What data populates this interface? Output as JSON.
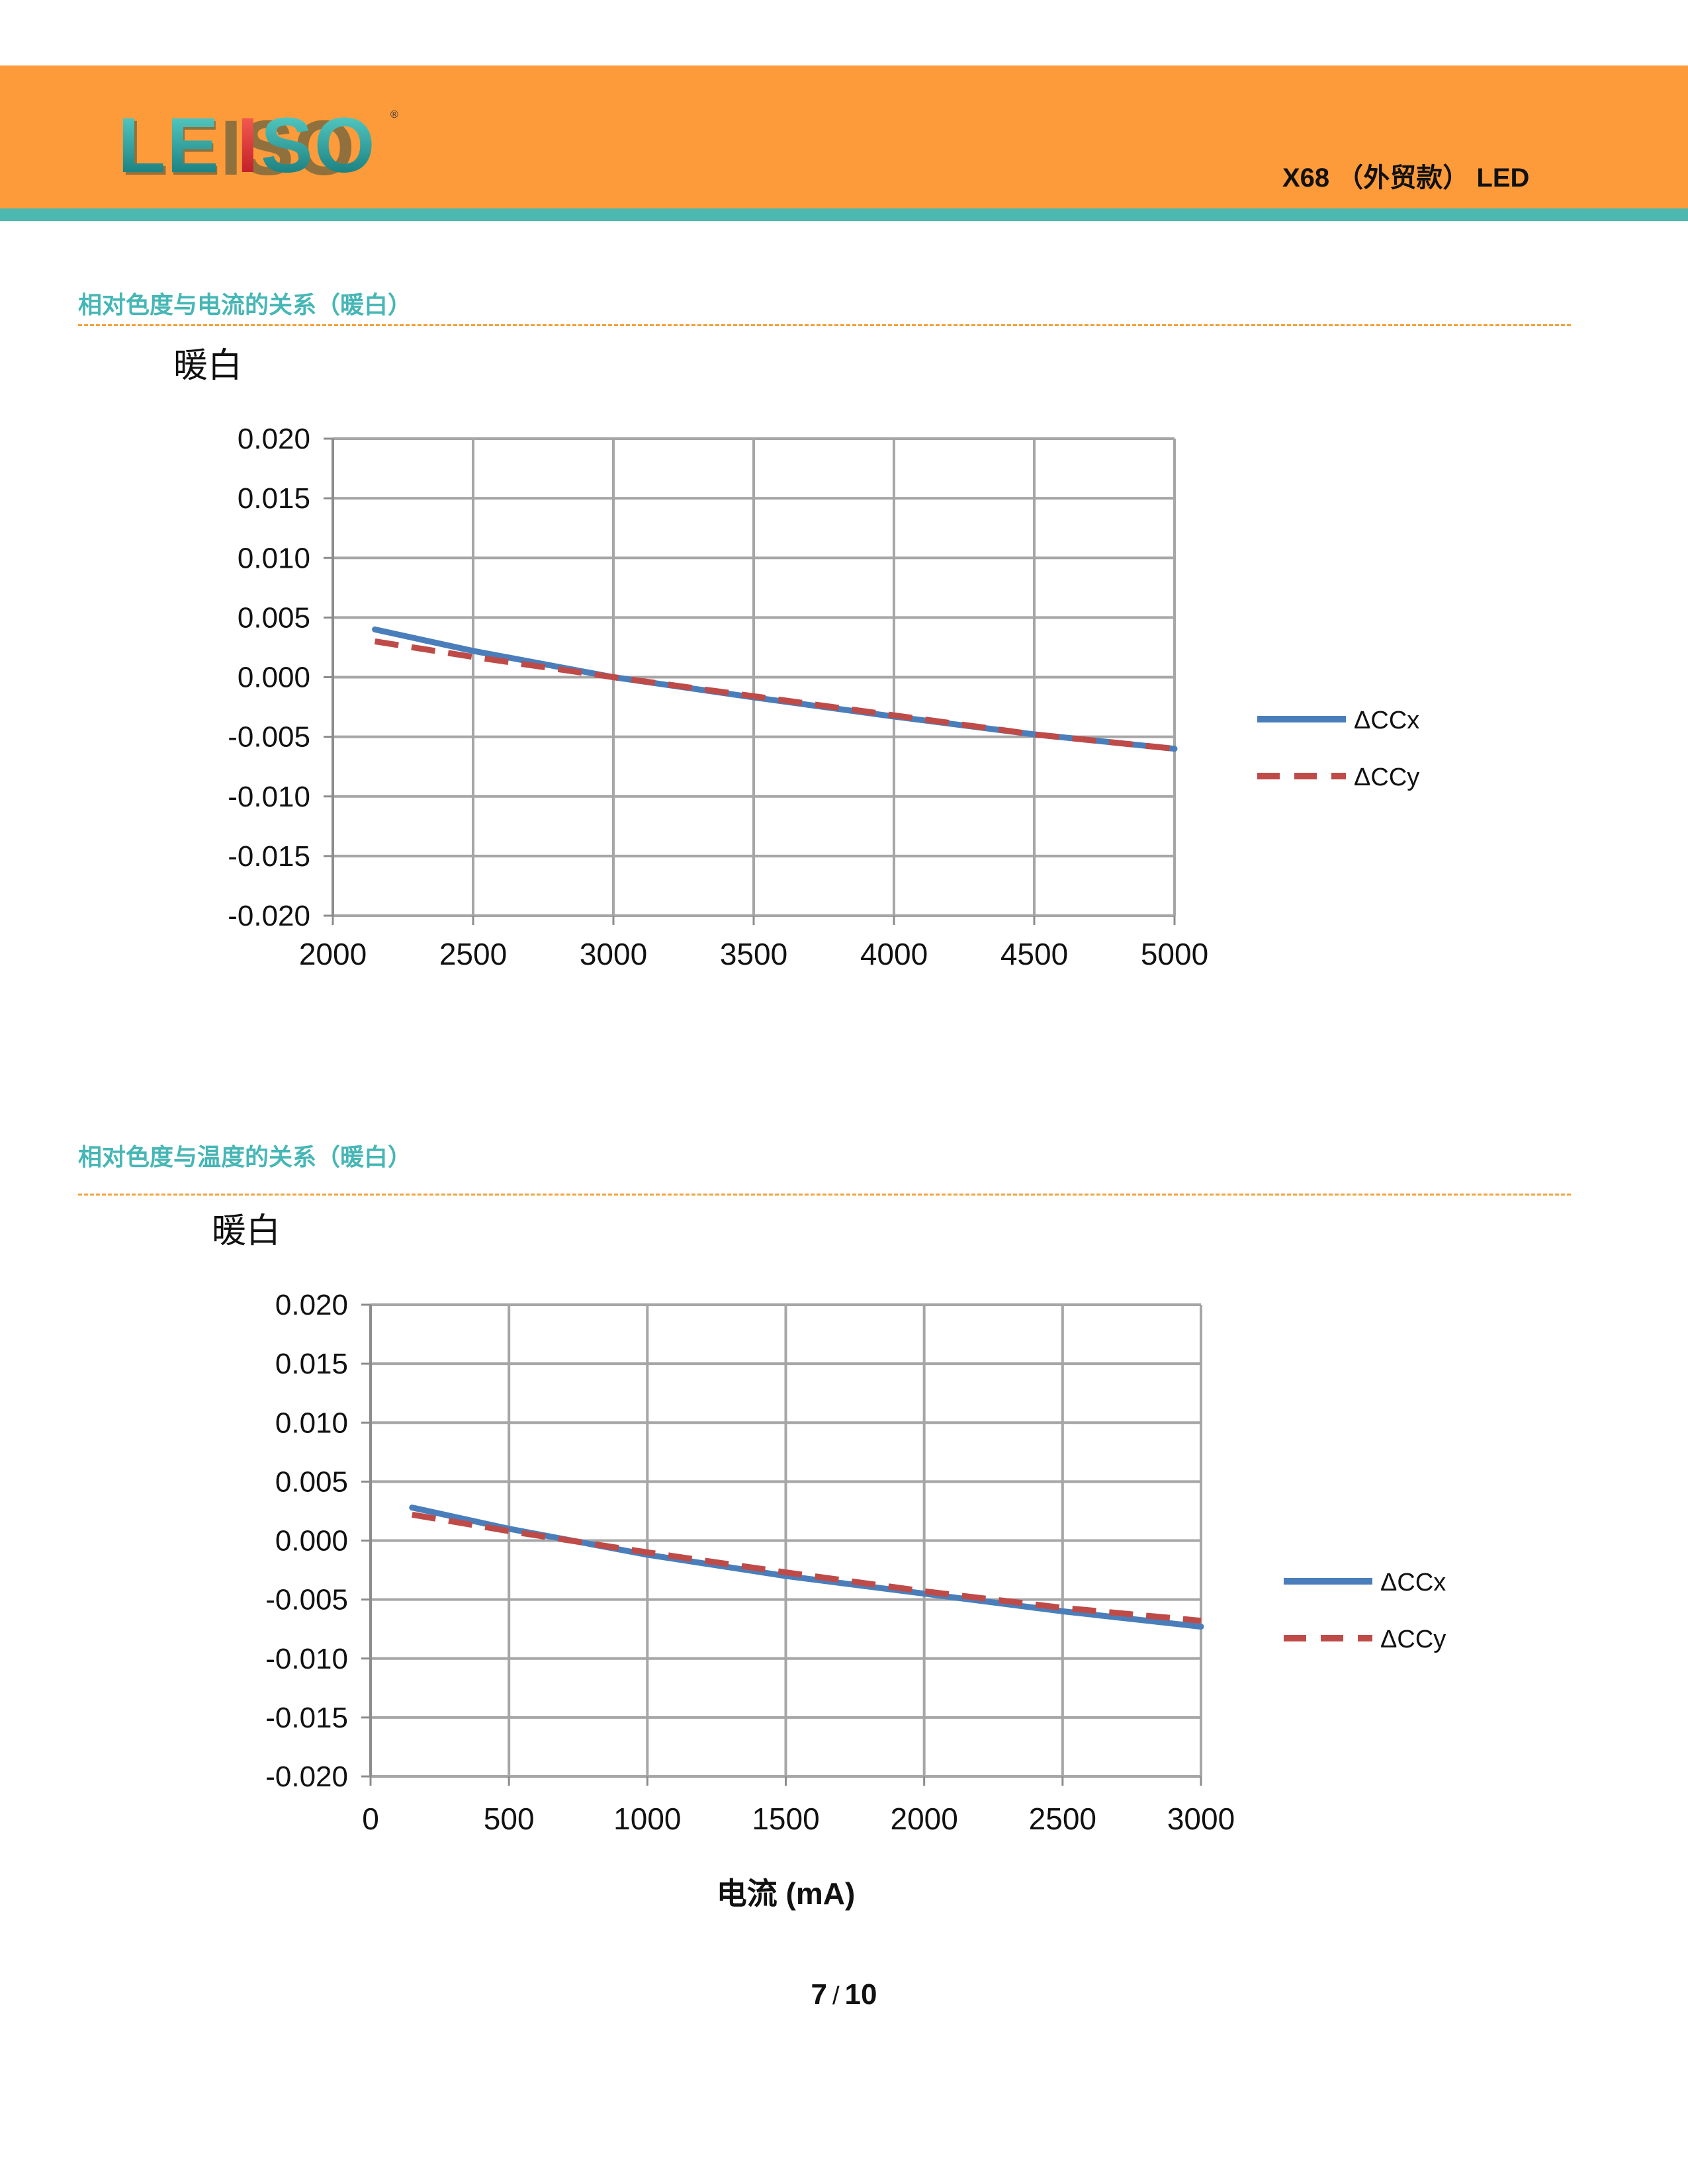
{
  "header": {
    "logo_text": "LEISO",
    "doc_title": "X68 （外贸款） LED",
    "colors": {
      "bar": "#fd9b3b",
      "stripe": "#4cb8b0",
      "section_title": "#46b6b6",
      "rule": "#f4a03a"
    }
  },
  "sections": [
    {
      "title": "相对色度与电流的关系（暖白）"
    },
    {
      "title": "相对色度与温度的关系（暖白）"
    }
  ],
  "chart_data": [
    {
      "type": "line",
      "title": "暖白",
      "xlabel": "",
      "ylabel": "",
      "xlim": [
        2000,
        5000
      ],
      "ylim": [
        -0.02,
        0.02
      ],
      "xticks": [
        "2000",
        "2500",
        "3000",
        "3500",
        "4000",
        "4500",
        "5000"
      ],
      "yticks": [
        "0.020",
        "0.015",
        "0.010",
        "0.005",
        "0.000",
        "-0.005",
        "-0.010",
        "-0.015",
        "-0.020"
      ],
      "grid": true,
      "legend": "right",
      "series": [
        {
          "name": "ΔCCx",
          "color": "#4a7ebb",
          "dash": false,
          "x": [
            2150,
            2500,
            3000,
            3500,
            4000,
            4500,
            5000
          ],
          "y": [
            0.004,
            0.0022,
            0.0,
            -0.0017,
            -0.0033,
            -0.0048,
            -0.006
          ]
        },
        {
          "name": "ΔCCy",
          "color": "#be4b48",
          "dash": true,
          "x": [
            2150,
            2500,
            3000,
            3500,
            4000,
            4500,
            5000
          ],
          "y": [
            0.003,
            0.0017,
            0.0,
            -0.0016,
            -0.0032,
            -0.0048,
            -0.006
          ]
        }
      ]
    },
    {
      "type": "line",
      "title": "暖白",
      "xlabel": "电流 (mA)",
      "ylabel": "",
      "xlim": [
        0,
        3000
      ],
      "ylim": [
        -0.02,
        0.02
      ],
      "xticks": [
        "0",
        "500",
        "1000",
        "1500",
        "2000",
        "2500",
        "3000"
      ],
      "yticks": [
        "0.020",
        "0.015",
        "0.010",
        "0.005",
        "0.000",
        "-0.005",
        "-0.010",
        "-0.015",
        "-0.020"
      ],
      "grid": true,
      "legend": "right",
      "series": [
        {
          "name": "ΔCCx",
          "color": "#4a7ebb",
          "dash": false,
          "x": [
            150,
            500,
            1000,
            1500,
            2000,
            2500,
            3000
          ],
          "y": [
            0.0028,
            0.001,
            -0.0012,
            -0.003,
            -0.0045,
            -0.006,
            -0.0073
          ]
        },
        {
          "name": "ΔCCy",
          "color": "#be4b48",
          "dash": true,
          "x": [
            150,
            500,
            1000,
            1500,
            2000,
            2500,
            3000
          ],
          "y": [
            0.0022,
            0.0008,
            -0.001,
            -0.0027,
            -0.0043,
            -0.0057,
            -0.0068
          ]
        }
      ]
    }
  ],
  "footer": {
    "page": "7",
    "total": "10",
    "separator": "/"
  }
}
